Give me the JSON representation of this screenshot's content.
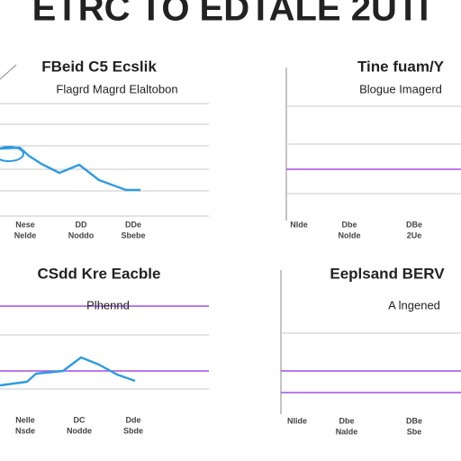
{
  "header": {
    "title": "ETRC TO EDTALE 2UTI"
  },
  "panels": [
    {
      "title": "FBeid C5 Ecslik",
      "subtitle": "Flagrd Magrd Elaltobon",
      "labels": [
        [
          "Nese",
          "Nelde"
        ],
        [
          "DD",
          "Noddo"
        ],
        [
          "DDe",
          "Sbebe"
        ]
      ]
    },
    {
      "title": "Tine fuam/Y",
      "subtitle": "Blogue Imagerd",
      "labels": [
        [
          "Nlde",
          ""
        ],
        [
          "Dbe",
          "Nolde"
        ],
        [
          "DBe",
          "2Ue"
        ]
      ]
    },
    {
      "title": "CSdd Kre Eacble",
      "subtitle": "Plhennd",
      "labels": [
        [
          "Nelle",
          "Nsde"
        ],
        [
          "DC",
          "Nodde"
        ],
        [
          "Dde",
          "Sbde"
        ]
      ]
    },
    {
      "title": "Eeplsand BERV",
      "subtitle": "A lngened",
      "labels": [
        [
          "Nlide",
          ""
        ],
        [
          "Dbe",
          "Nalde"
        ],
        [
          "DBe",
          "Sbe"
        ]
      ]
    }
  ]
}
